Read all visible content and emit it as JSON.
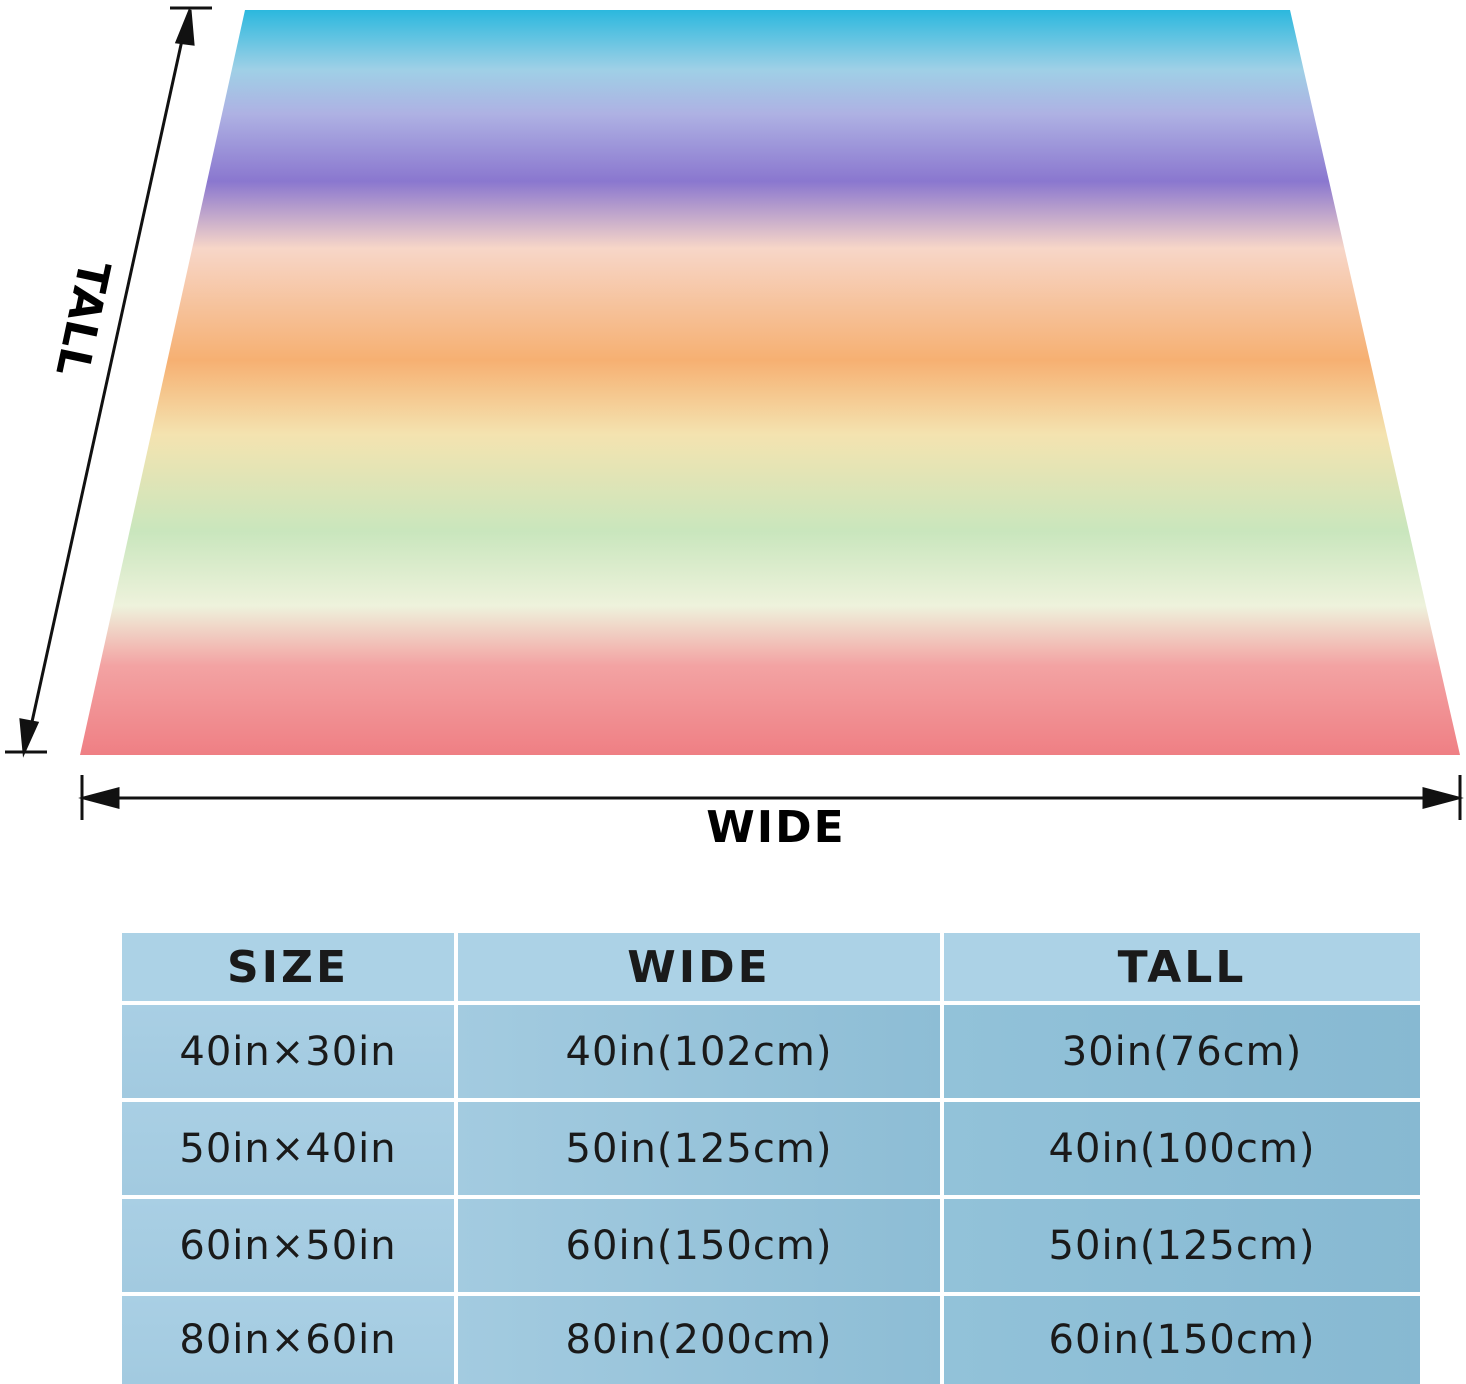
{
  "diagram": {
    "tall_label": "TALL",
    "wide_label": "WIDE"
  },
  "table": {
    "header": [
      "SIZE",
      "WIDE",
      "TALL"
    ],
    "rows": [
      [
        "40in×30in",
        "40in(102cm)",
        "30in(76cm)"
      ],
      [
        "50in×40in",
        "50in(125cm)",
        "40in(100cm)"
      ],
      [
        "60in×50in",
        "60in(150cm)",
        "50in(125cm)"
      ],
      [
        "80in×60in",
        "80in(200cm)",
        "60in(150cm)"
      ]
    ]
  }
}
